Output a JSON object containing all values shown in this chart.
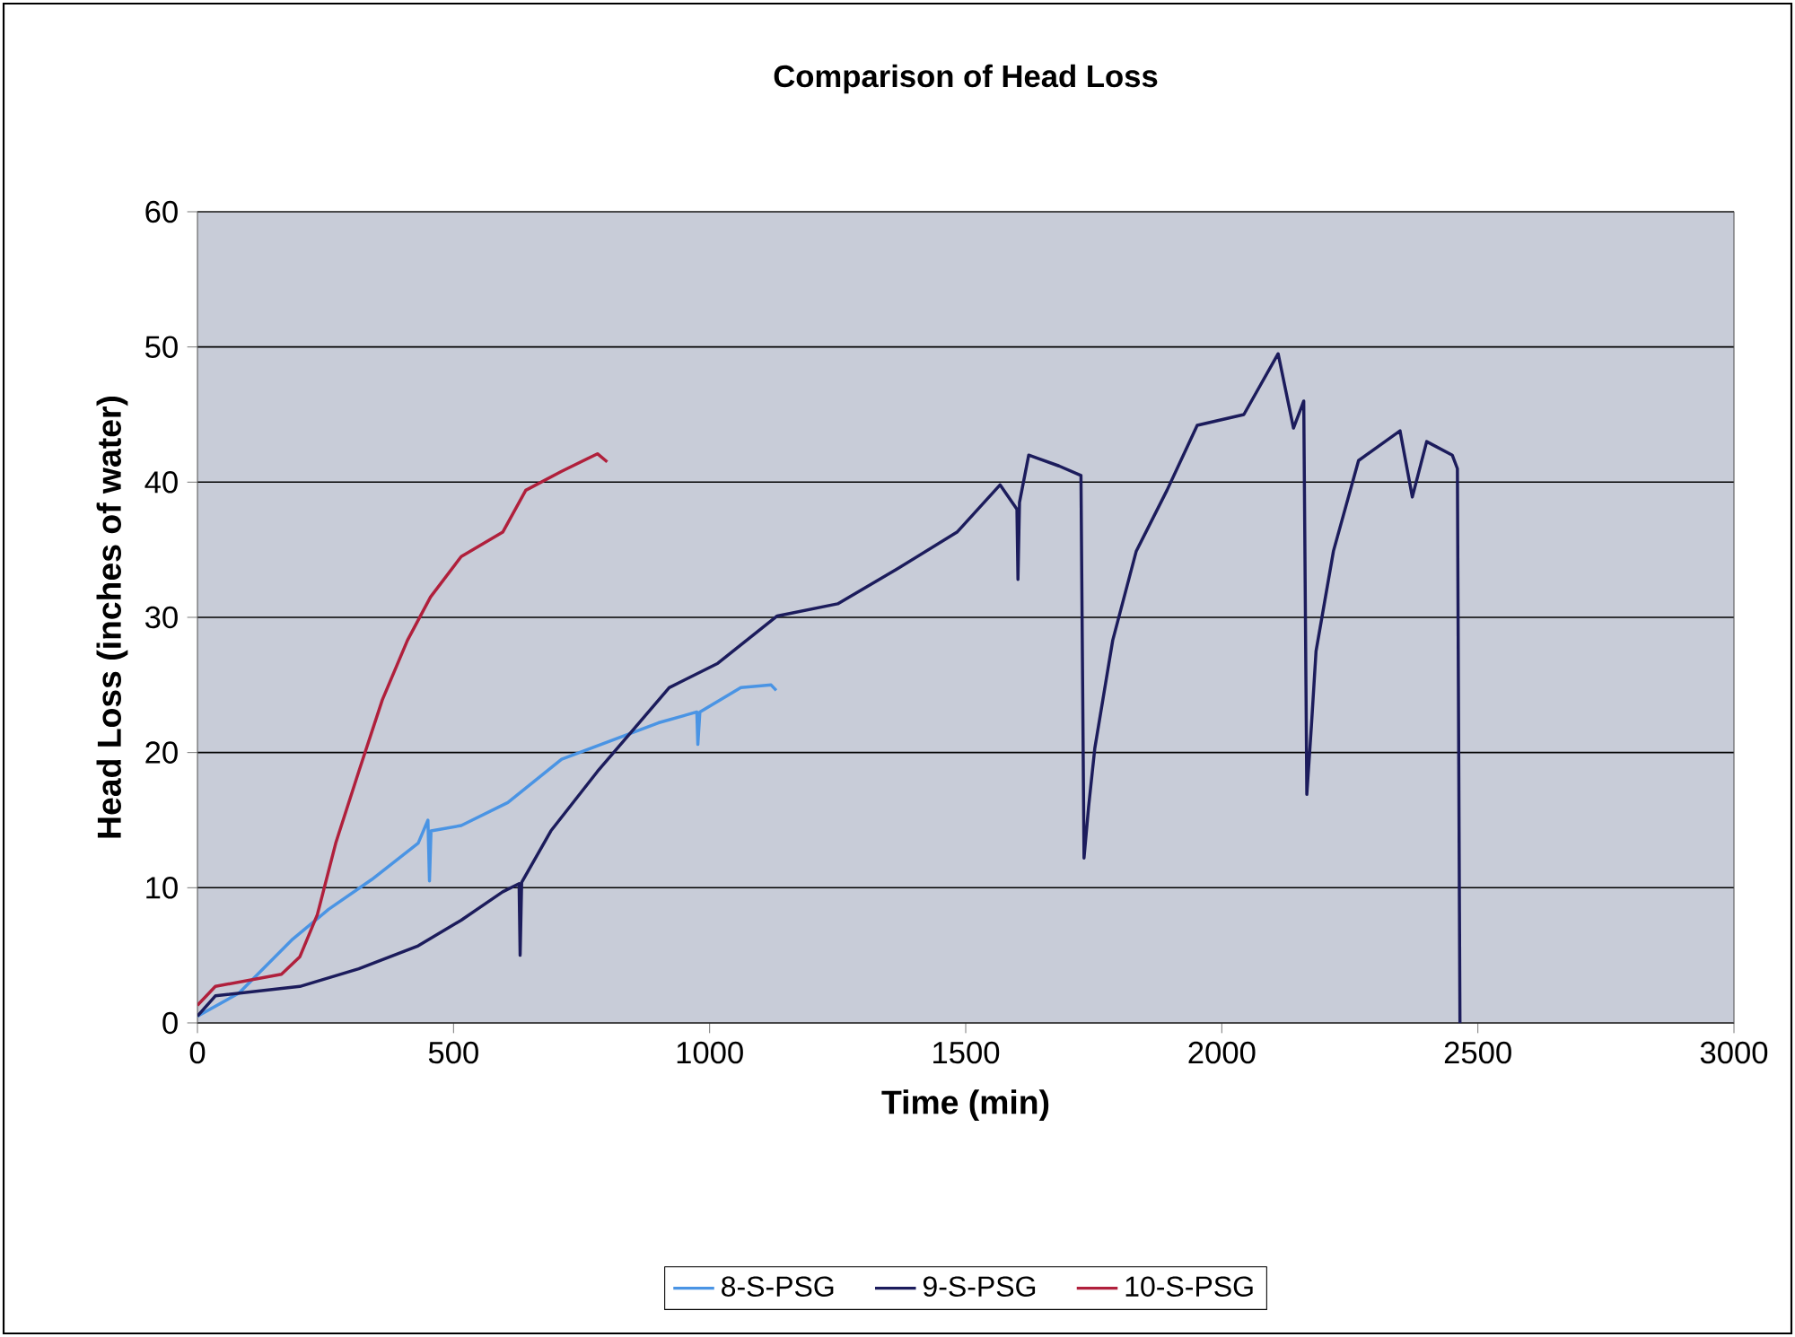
{
  "chart_data": {
    "type": "line",
    "title": "Comparison of Head Loss",
    "xlabel": "Time (min)",
    "ylabel": "Head Loss (inches of water)",
    "xlim": [
      0,
      3000
    ],
    "ylim": [
      0,
      60
    ],
    "xticks": [
      0,
      500,
      1000,
      1500,
      2000,
      2500,
      3000
    ],
    "yticks": [
      0,
      10,
      20,
      30,
      40,
      50,
      60
    ],
    "grid": "y",
    "legend": "bottom",
    "marker": "none",
    "line_style": "solid",
    "series": [
      {
        "name": "8-S-PSG",
        "color": "#4a94e4",
        "x": [
          0,
          81,
          186,
          256,
          340,
          431,
          450,
          453,
          456,
          515,
          606,
          711,
          830,
          900,
          975,
          977,
          981,
          1061,
          1120,
          1130
        ],
        "values": [
          0.5,
          2.2,
          6.2,
          8.4,
          10.6,
          13.3,
          15,
          10.5,
          14.2,
          14.6,
          16.3,
          19.5,
          21.2,
          22.2,
          23,
          20.6,
          23,
          24.8,
          25,
          24.6
        ]
      },
      {
        "name": "9-S-PSG",
        "color": "#1c1c5c",
        "x": [
          0,
          35,
          200,
          315,
          431,
          515,
          596,
          628,
          630,
          633,
          690,
          781,
          851,
          921,
          1016,
          1132,
          1250,
          1367,
          1483,
          1567,
          1600,
          1602,
          1605,
          1623,
          1682,
          1725,
          1731,
          1740,
          1752,
          1787,
          1833,
          1893,
          1952,
          2043,
          2110,
          2140,
          2160,
          2166,
          2175,
          2184,
          2218,
          2267,
          2348,
          2372,
          2400,
          2450,
          2460,
          2465
        ],
        "values": [
          0.5,
          2.0,
          2.7,
          4.0,
          5.7,
          7.6,
          9.7,
          10.3,
          5.0,
          10.4,
          14.2,
          18.6,
          21.7,
          24.8,
          26.6,
          30.1,
          31,
          33.6,
          36.3,
          39.8,
          38,
          32.8,
          38.5,
          42,
          41.2,
          40.5,
          12.2,
          16,
          20.3,
          28.3,
          34.9,
          39.4,
          44.2,
          45,
          49.5,
          44,
          46,
          16.9,
          22,
          27.5,
          34.9,
          41.6,
          43.8,
          38.9,
          43,
          42,
          41,
          0
        ]
      },
      {
        "name": "10-S-PSG",
        "color": "#b0203c",
        "x": [
          0,
          35,
          164,
          200,
          234,
          270,
          315,
          361,
          410,
          455,
          515,
          596,
          641,
          711,
          781,
          800
        ],
        "values": [
          1.3,
          2.7,
          3.6,
          4.9,
          8,
          13.3,
          18.6,
          23.9,
          28.3,
          31.5,
          34.5,
          36.3,
          39.4,
          40.8,
          42.1,
          41.5
        ]
      }
    ]
  }
}
